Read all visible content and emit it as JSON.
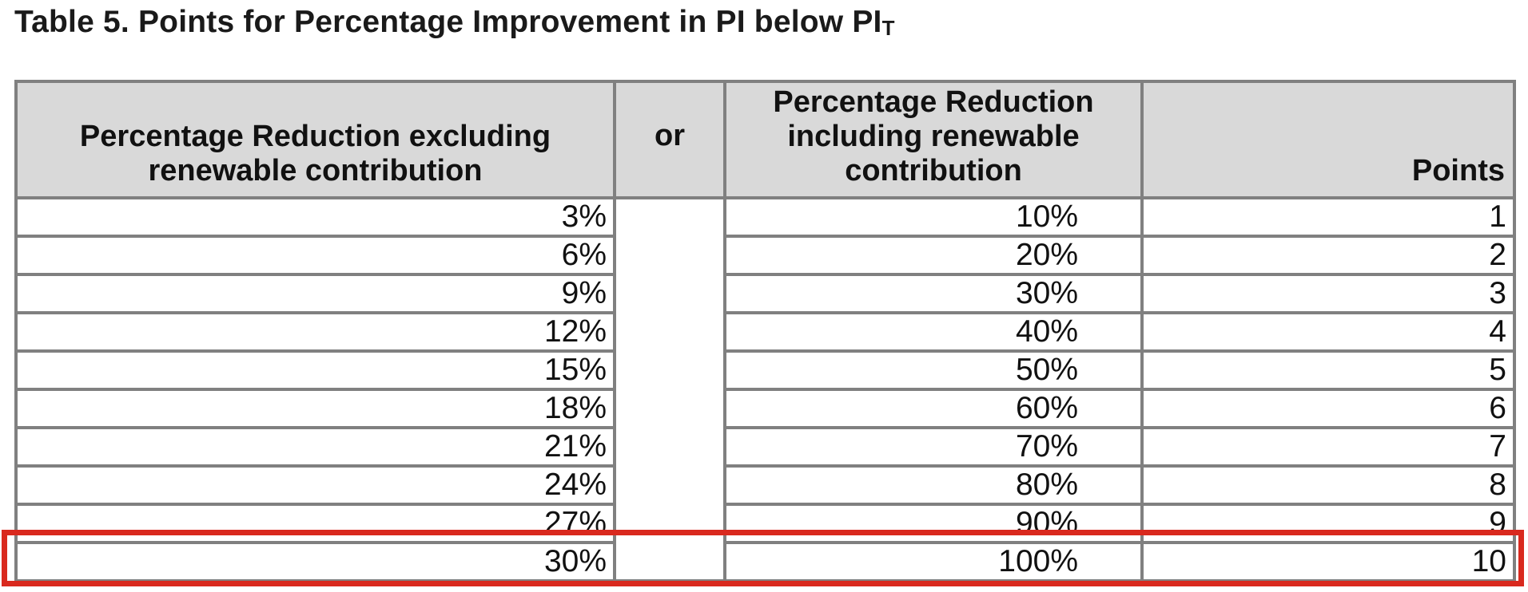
{
  "title": {
    "text": "Table 5. Points for Percentage Improvement in PI below PI",
    "subscript": "T"
  },
  "table": {
    "headers": {
      "excluding": "Percentage Reduction excluding renewable contribution",
      "or": "or",
      "including": "Percentage Reduction including renewable contribution",
      "points": "Points"
    },
    "rows": [
      {
        "excluding": "3%",
        "including": "10%",
        "points": "1"
      },
      {
        "excluding": "6%",
        "including": "20%",
        "points": "2"
      },
      {
        "excluding": "9%",
        "including": "30%",
        "points": "3"
      },
      {
        "excluding": "12%",
        "including": "40%",
        "points": "4"
      },
      {
        "excluding": "15%",
        "including": "50%",
        "points": "5"
      },
      {
        "excluding": "18%",
        "including": "60%",
        "points": "6"
      },
      {
        "excluding": "21%",
        "including": "70%",
        "points": "7"
      },
      {
        "excluding": "24%",
        "including": "80%",
        "points": "8"
      },
      {
        "excluding": "27%",
        "including": "90%",
        "points": "9"
      },
      {
        "excluding": "30%",
        "including": "100%",
        "points": "10"
      }
    ],
    "highlighted_row_index": 9
  },
  "colors": {
    "header_background": "#d9d9d9",
    "table_border": "#808080",
    "highlight_red": "#d9291e",
    "text": "#111111"
  }
}
